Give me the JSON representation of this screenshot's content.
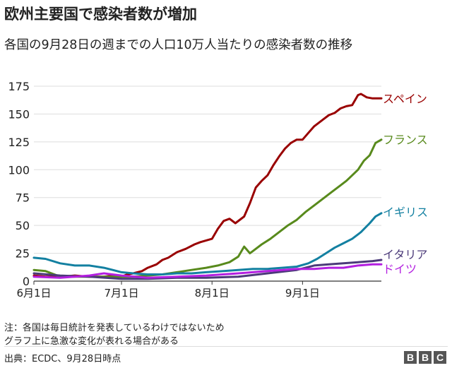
{
  "title": "欧州主要国で感染者数が増加",
  "subtitle": "各国の9月28日の週までの人口10万人当たりの感染者数の推移",
  "notes": [
    "注：各国は毎日統計を発表しているわけではないため",
    "グラフ上に急激な変化が表れる場合がある"
  ],
  "source": "出典：ECDC、9月28日時点",
  "logo": [
    "B",
    "B",
    "C"
  ],
  "chart_data": {
    "type": "line",
    "ylim": [
      0,
      175
    ],
    "yticks": [
      0,
      25,
      50,
      75,
      100,
      125,
      150,
      175
    ],
    "xlim": [
      "2020-06-01",
      "2020-09-28"
    ],
    "xticks": [
      {
        "label": "6月1日",
        "date": "2020-06-01"
      },
      {
        "label": "7月1日",
        "date": "2020-07-01"
      },
      {
        "label": "8月1日",
        "date": "2020-08-01"
      },
      {
        "label": "9月1日",
        "date": "2020-09-01"
      }
    ],
    "series": [
      {
        "name": "スペイン",
        "color": "#990000",
        "x": [
          "2020-06-01",
          "2020-06-05",
          "2020-06-10",
          "2020-06-15",
          "2020-06-20",
          "2020-06-25",
          "2020-06-28",
          "2020-07-01",
          "2020-07-03",
          "2020-07-05",
          "2020-07-08",
          "2020-07-10",
          "2020-07-13",
          "2020-07-15",
          "2020-07-17",
          "2020-07-20",
          "2020-07-23",
          "2020-07-26",
          "2020-07-28",
          "2020-08-01",
          "2020-08-03",
          "2020-08-05",
          "2020-08-07",
          "2020-08-09",
          "2020-08-12",
          "2020-08-14",
          "2020-08-16",
          "2020-08-18",
          "2020-08-20",
          "2020-08-22",
          "2020-08-24",
          "2020-08-26",
          "2020-08-28",
          "2020-08-30",
          "2020-09-01",
          "2020-09-03",
          "2020-09-05",
          "2020-09-08",
          "2020-09-10",
          "2020-09-12",
          "2020-09-14",
          "2020-09-16",
          "2020-09-18",
          "2020-09-20",
          "2020-09-21",
          "2020-09-23",
          "2020-09-25",
          "2020-09-28"
        ],
        "y": [
          5,
          4,
          4,
          5,
          4,
          4,
          5,
          4,
          6,
          7,
          9,
          12,
          15,
          19,
          21,
          26,
          29,
          33,
          35,
          38,
          47,
          54,
          56,
          52,
          58,
          70,
          84,
          90,
          95,
          104,
          112,
          119,
          124,
          127,
          127,
          133,
          139,
          145,
          149,
          151,
          155,
          157,
          158,
          167,
          168,
          165,
          164,
          164
        ]
      },
      {
        "name": "フランス",
        "color": "#588a1c",
        "x": [
          "2020-06-01",
          "2020-06-05",
          "2020-06-10",
          "2020-06-15",
          "2020-06-20",
          "2020-06-25",
          "2020-06-28",
          "2020-07-01",
          "2020-07-05",
          "2020-07-10",
          "2020-07-15",
          "2020-07-20",
          "2020-07-25",
          "2020-07-30",
          "2020-08-03",
          "2020-08-07",
          "2020-08-10",
          "2020-08-12",
          "2020-08-14",
          "2020-08-15",
          "2020-08-18",
          "2020-08-21",
          "2020-08-24",
          "2020-08-27",
          "2020-08-30",
          "2020-09-02",
          "2020-09-05",
          "2020-09-08",
          "2020-09-11",
          "2020-09-14",
          "2020-09-16",
          "2020-09-18",
          "2020-09-20",
          "2020-09-22",
          "2020-09-24",
          "2020-09-26",
          "2020-09-28"
        ],
        "y": [
          10,
          9,
          4,
          4,
          4,
          4,
          4,
          4,
          4,
          5,
          6,
          8,
          10,
          12,
          14,
          17,
          22,
          31,
          25,
          27,
          33,
          38,
          44,
          50,
          55,
          62,
          68,
          74,
          80,
          86,
          90,
          95,
          100,
          108,
          113,
          124,
          127
        ]
      },
      {
        "name": "イギリス",
        "color": "#1380a1",
        "x": [
          "2020-06-01",
          "2020-06-05",
          "2020-06-10",
          "2020-06-15",
          "2020-06-20",
          "2020-06-25",
          "2020-06-28",
          "2020-07-01",
          "2020-07-05",
          "2020-07-10",
          "2020-07-15",
          "2020-07-20",
          "2020-07-25",
          "2020-07-30",
          "2020-08-05",
          "2020-08-10",
          "2020-08-15",
          "2020-08-20",
          "2020-08-25",
          "2020-08-30",
          "2020-09-03",
          "2020-09-06",
          "2020-09-09",
          "2020-09-12",
          "2020-09-15",
          "2020-09-18",
          "2020-09-21",
          "2020-09-24",
          "2020-09-26",
          "2020-09-28"
        ],
        "y": [
          21,
          20,
          16,
          14,
          14,
          12,
          10,
          8,
          7,
          6,
          6,
          7,
          7,
          8,
          9,
          10,
          11,
          11,
          12,
          13,
          16,
          20,
          25,
          30,
          34,
          38,
          44,
          52,
          58,
          61
        ]
      },
      {
        "name": "イタリア",
        "color": "#4b3a79",
        "x": [
          "2020-06-01",
          "2020-06-10",
          "2020-06-20",
          "2020-07-01",
          "2020-07-10",
          "2020-07-20",
          "2020-07-30",
          "2020-08-10",
          "2020-08-20",
          "2020-08-30",
          "2020-09-05",
          "2020-09-10",
          "2020-09-15",
          "2020-09-20",
          "2020-09-25",
          "2020-09-28"
        ],
        "y": [
          7,
          5,
          4,
          2,
          2,
          3,
          3,
          4,
          7,
          10,
          14,
          15,
          16,
          17,
          18,
          19
        ]
      },
      {
        "name": "ドイツ",
        "color": "#b31fe0",
        "x": [
          "2020-06-01",
          "2020-06-10",
          "2020-06-20",
          "2020-06-25",
          "2020-07-01",
          "2020-07-10",
          "2020-07-20",
          "2020-07-30",
          "2020-08-10",
          "2020-08-20",
          "2020-08-30",
          "2020-09-05",
          "2020-09-10",
          "2020-09-15",
          "2020-09-20",
          "2020-09-25",
          "2020-09-28"
        ],
        "y": [
          4,
          3,
          5,
          7,
          5,
          3,
          4,
          5,
          7,
          9,
          11,
          11,
          12,
          12,
          14,
          15,
          15
        ]
      }
    ]
  }
}
